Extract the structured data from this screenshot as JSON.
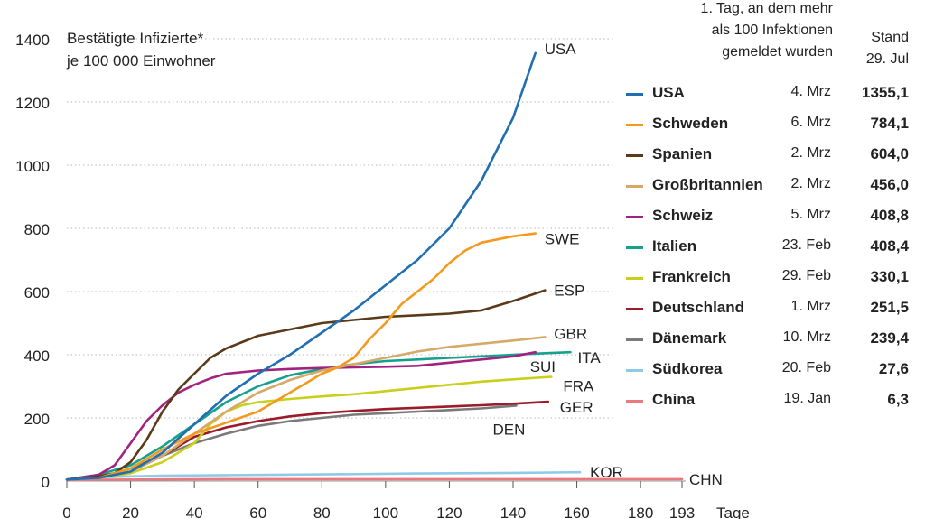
{
  "chart_data": {
    "type": "line",
    "yaxis_title": [
      "Bestätigte Infizierte*",
      "je 100 000 Einwohner"
    ],
    "xlabel": "Tage",
    "xlim": [
      0,
      193
    ],
    "ylim": [
      0,
      1400
    ],
    "x_ticks": [
      0,
      20,
      40,
      60,
      80,
      100,
      120,
      140,
      160,
      180,
      193
    ],
    "y_ticks": [
      0,
      200,
      400,
      600,
      800,
      1000,
      1200,
      1400
    ],
    "grid": true,
    "legend": {
      "header_date": [
        "1. Tag, an dem mehr",
        "als 100 Infektionen",
        "gemeldet wurden"
      ],
      "header_value": [
        "Stand",
        "29. Jul"
      ]
    },
    "series": [
      {
        "name": "USA",
        "label": "USA",
        "color": "#1f6fb2",
        "date": "4. Mrz",
        "value": "1355,1",
        "points": [
          [
            0,
            5
          ],
          [
            10,
            10
          ],
          [
            20,
            30
          ],
          [
            30,
            90
          ],
          [
            40,
            180
          ],
          [
            50,
            270
          ],
          [
            60,
            340
          ],
          [
            70,
            400
          ],
          [
            80,
            470
          ],
          [
            90,
            540
          ],
          [
            100,
            620
          ],
          [
            110,
            700
          ],
          [
            120,
            800
          ],
          [
            130,
            950
          ],
          [
            140,
            1150
          ],
          [
            147,
            1355
          ]
        ]
      },
      {
        "name": "Schweden",
        "label": "SWE",
        "color": "#f39a1e",
        "date": "6. Mrz",
        "value": "784,1",
        "points": [
          [
            0,
            5
          ],
          [
            10,
            10
          ],
          [
            20,
            40
          ],
          [
            30,
            100
          ],
          [
            40,
            150
          ],
          [
            50,
            185
          ],
          [
            60,
            220
          ],
          [
            70,
            280
          ],
          [
            80,
            340
          ],
          [
            85,
            360
          ],
          [
            90,
            390
          ],
          [
            95,
            450
          ],
          [
            100,
            500
          ],
          [
            105,
            560
          ],
          [
            110,
            600
          ],
          [
            115,
            640
          ],
          [
            120,
            690
          ],
          [
            125,
            730
          ],
          [
            130,
            755
          ],
          [
            140,
            775
          ],
          [
            147,
            784
          ]
        ]
      },
      {
        "name": "Spanien",
        "label": "ESP",
        "color": "#5b3a1a",
        "date": "2. Mrz",
        "value": "604,0",
        "points": [
          [
            0,
            5
          ],
          [
            10,
            15
          ],
          [
            15,
            25
          ],
          [
            20,
            60
          ],
          [
            25,
            130
          ],
          [
            30,
            220
          ],
          [
            35,
            290
          ],
          [
            40,
            340
          ],
          [
            45,
            390
          ],
          [
            50,
            420
          ],
          [
            55,
            440
          ],
          [
            60,
            460
          ],
          [
            70,
            480
          ],
          [
            80,
            500
          ],
          [
            90,
            510
          ],
          [
            100,
            520
          ],
          [
            110,
            525
          ],
          [
            120,
            530
          ],
          [
            130,
            540
          ],
          [
            140,
            570
          ],
          [
            150,
            604
          ]
        ]
      },
      {
        "name": "Großbritannien",
        "label": "GBR",
        "color": "#d6a968",
        "date": "2. Mrz",
        "value": "456,0",
        "points": [
          [
            0,
            5
          ],
          [
            10,
            10
          ],
          [
            20,
            30
          ],
          [
            30,
            80
          ],
          [
            40,
            150
          ],
          [
            50,
            220
          ],
          [
            60,
            280
          ],
          [
            70,
            320
          ],
          [
            80,
            350
          ],
          [
            90,
            370
          ],
          [
            100,
            390
          ],
          [
            110,
            410
          ],
          [
            120,
            425
          ],
          [
            130,
            435
          ],
          [
            140,
            445
          ],
          [
            150,
            456
          ]
        ]
      },
      {
        "name": "Schweiz",
        "label": "SUI",
        "color": "#a2237f",
        "date": "5. Mrz",
        "value": "408,8",
        "points": [
          [
            0,
            5
          ],
          [
            10,
            20
          ],
          [
            15,
            50
          ],
          [
            20,
            120
          ],
          [
            25,
            190
          ],
          [
            30,
            240
          ],
          [
            35,
            280
          ],
          [
            40,
            305
          ],
          [
            45,
            325
          ],
          [
            50,
            340
          ],
          [
            60,
            350
          ],
          [
            70,
            355
          ],
          [
            80,
            358
          ],
          [
            90,
            360
          ],
          [
            100,
            362
          ],
          [
            110,
            365
          ],
          [
            120,
            375
          ],
          [
            130,
            385
          ],
          [
            140,
            395
          ],
          [
            147,
            408
          ]
        ]
      },
      {
        "name": "Italien",
        "label": "ITA",
        "color": "#16a18e",
        "date": "23. Feb",
        "value": "408,4",
        "points": [
          [
            0,
            5
          ],
          [
            10,
            20
          ],
          [
            20,
            50
          ],
          [
            30,
            110
          ],
          [
            40,
            180
          ],
          [
            50,
            250
          ],
          [
            60,
            300
          ],
          [
            70,
            335
          ],
          [
            80,
            355
          ],
          [
            90,
            370
          ],
          [
            100,
            380
          ],
          [
            110,
            385
          ],
          [
            120,
            390
          ],
          [
            130,
            395
          ],
          [
            140,
            400
          ],
          [
            150,
            405
          ],
          [
            158,
            408
          ]
        ]
      },
      {
        "name": "Frankreich",
        "label": "FRA",
        "color": "#c9cf1a",
        "date": "29. Feb",
        "value": "330,1",
        "points": [
          [
            0,
            5
          ],
          [
            10,
            10
          ],
          [
            20,
            25
          ],
          [
            30,
            60
          ],
          [
            40,
            120
          ],
          [
            45,
            180
          ],
          [
            50,
            220
          ],
          [
            55,
            240
          ],
          [
            60,
            250
          ],
          [
            70,
            260
          ],
          [
            80,
            268
          ],
          [
            90,
            275
          ],
          [
            100,
            285
          ],
          [
            110,
            295
          ],
          [
            120,
            305
          ],
          [
            130,
            315
          ],
          [
            140,
            322
          ],
          [
            152,
            330
          ]
        ]
      },
      {
        "name": "Deutschland",
        "label": "GER",
        "color": "#9b1b2a",
        "date": "1. Mrz",
        "value": "251,5",
        "points": [
          [
            0,
            5
          ],
          [
            10,
            10
          ],
          [
            20,
            30
          ],
          [
            30,
            80
          ],
          [
            40,
            140
          ],
          [
            50,
            170
          ],
          [
            60,
            190
          ],
          [
            70,
            205
          ],
          [
            80,
            215
          ],
          [
            90,
            222
          ],
          [
            100,
            228
          ],
          [
            110,
            232
          ],
          [
            120,
            236
          ],
          [
            130,
            240
          ],
          [
            140,
            245
          ],
          [
            151,
            251
          ]
        ]
      },
      {
        "name": "Dänemark",
        "label": "DEN",
        "color": "#7a7a7a",
        "date": "10. Mrz",
        "value": "239,4",
        "points": [
          [
            0,
            5
          ],
          [
            10,
            10
          ],
          [
            20,
            40
          ],
          [
            30,
            80
          ],
          [
            40,
            120
          ],
          [
            50,
            150
          ],
          [
            60,
            175
          ],
          [
            70,
            190
          ],
          [
            80,
            200
          ],
          [
            90,
            210
          ],
          [
            100,
            215
          ],
          [
            110,
            220
          ],
          [
            120,
            225
          ],
          [
            130,
            230
          ],
          [
            141,
            239
          ]
        ]
      },
      {
        "name": "Südkorea",
        "label": "KOR",
        "color": "#8ecbe8",
        "date": "20. Feb",
        "value": "27,6",
        "points": [
          [
            0,
            5
          ],
          [
            10,
            12
          ],
          [
            20,
            15
          ],
          [
            30,
            17
          ],
          [
            50,
            19
          ],
          [
            80,
            21
          ],
          [
            110,
            24
          ],
          [
            140,
            26
          ],
          [
            161,
            28
          ]
        ]
      },
      {
        "name": "China",
        "label": "CHN",
        "color": "#e9797f",
        "date": "19. Jan",
        "value": "6,3",
        "points": [
          [
            0,
            4
          ],
          [
            20,
            5
          ],
          [
            50,
            6
          ],
          [
            100,
            6
          ],
          [
            150,
            6
          ],
          [
            193,
            6
          ]
        ]
      }
    ]
  }
}
